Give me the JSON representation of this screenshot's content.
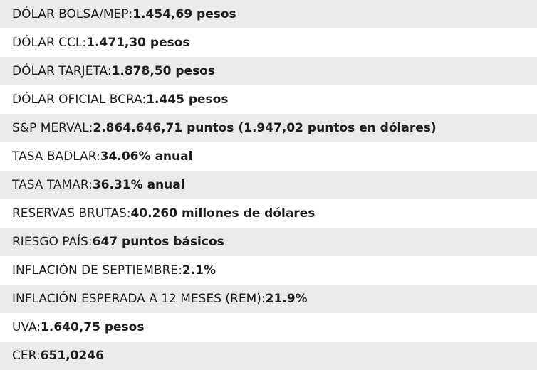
{
  "indicators": [
    {
      "label": "DÓLAR BOLSA/MEP: ",
      "value": "1.454,69 pesos"
    },
    {
      "label": "DÓLAR CCL: ",
      "value": "1.471,30 pesos"
    },
    {
      "label": "DÓLAR TARJETA: ",
      "value": "1.878,50 pesos"
    },
    {
      "label": "DÓLAR OFICIAL BCRA: ",
      "value": "1.445 pesos"
    },
    {
      "label": "S&P MERVAL: ",
      "value": "2.864.646,71 puntos (1.947,02 puntos en dólares)"
    },
    {
      "label": "TASA BADLAR: ",
      "value": "34.06% anual"
    },
    {
      "label": "TASA TAMAR: ",
      "value": "36.31% anual"
    },
    {
      "label": "RESERVAS BRUTAS: ",
      "value": "40.260 millones de dólares"
    },
    {
      "label": "RIESGO PAÍS: ",
      "value": "647 puntos básicos"
    },
    {
      "label": "INFLACIÓN DE SEPTIEMBRE: ",
      "value": "2.1%"
    },
    {
      "label": "INFLACIÓN ESPERADA A 12 MESES (REM): ",
      "value": "21.9%"
    },
    {
      "label": "UVA: ",
      "value": "1.640,75 pesos"
    },
    {
      "label": "CER:",
      "value": "651,0246"
    }
  ]
}
